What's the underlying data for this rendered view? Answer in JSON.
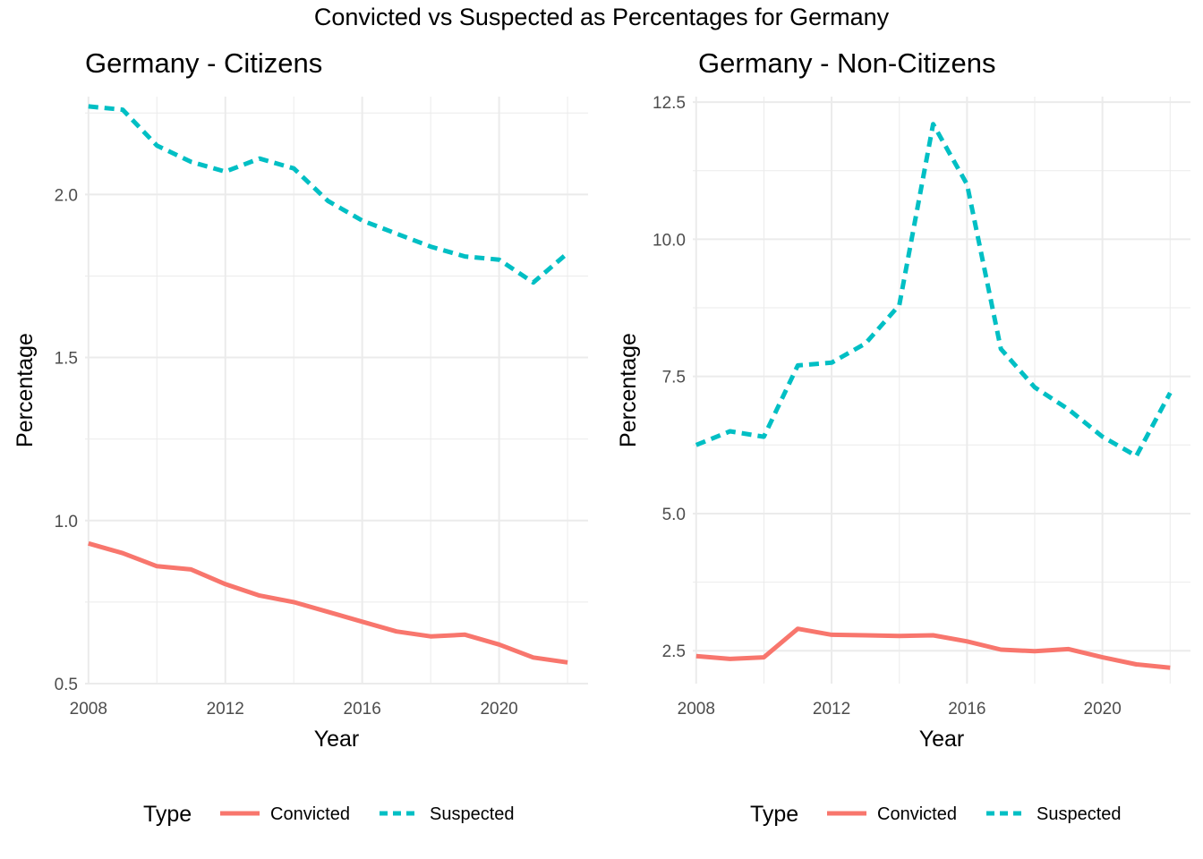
{
  "title": "Convicted vs Suspected as Percentages for Germany",
  "colors": {
    "Convicted": "#F8766D",
    "Suspected": "#00BFC4"
  },
  "chart_data": [
    {
      "type": "line",
      "title": "Germany - Citizens",
      "xlabel": "Year",
      "ylabel": "Percentage",
      "xlim": [
        2007.9,
        2022.6
      ],
      "ylim": [
        0.5,
        2.3
      ],
      "xticks": [
        2008,
        2012,
        2016,
        2020
      ],
      "xtick_labels": [
        "2008",
        "2012",
        "2016",
        "2020"
      ],
      "yticks": [
        0.5,
        1.0,
        1.5,
        2.0
      ],
      "ytick_labels": [
        "0.5",
        "1.0",
        "1.5",
        "2.0"
      ],
      "legend": {
        "title": "Type",
        "position": "bottom"
      },
      "x": [
        2008,
        2009,
        2010,
        2011,
        2012,
        2013,
        2014,
        2015,
        2016,
        2017,
        2018,
        2019,
        2020,
        2021,
        2022
      ],
      "series": [
        {
          "name": "Convicted",
          "style": "solid",
          "values": [
            0.93,
            0.9,
            0.86,
            0.85,
            0.805,
            0.77,
            0.75,
            0.72,
            0.69,
            0.66,
            0.645,
            0.65,
            0.62,
            0.58,
            0.565
          ]
        },
        {
          "name": "Suspected",
          "style": "dashed",
          "values": [
            2.27,
            2.26,
            2.15,
            2.1,
            2.07,
            2.11,
            2.08,
            1.98,
            1.92,
            1.88,
            1.84,
            1.81,
            1.8,
            1.73,
            1.82
          ]
        }
      ]
    },
    {
      "type": "line",
      "title": "Germany - Non-Citizens",
      "xlabel": "Year",
      "ylabel": "Percentage",
      "xlim": [
        2007.9,
        2022.6
      ],
      "ylim": [
        1.9,
        12.6
      ],
      "xticks": [
        2008,
        2012,
        2016,
        2020
      ],
      "xtick_labels": [
        "2008",
        "2012",
        "2016",
        "2020"
      ],
      "yticks": [
        2.5,
        5.0,
        7.5,
        10.0,
        12.5
      ],
      "ytick_labels": [
        "2.5",
        "5.0",
        "7.5",
        "10.0",
        "12.5"
      ],
      "legend": {
        "title": "Type",
        "position": "bottom"
      },
      "x": [
        2008,
        2009,
        2010,
        2011,
        2012,
        2013,
        2014,
        2015,
        2016,
        2017,
        2018,
        2019,
        2020,
        2021,
        2022
      ],
      "series": [
        {
          "name": "Convicted",
          "style": "solid",
          "values": [
            2.4,
            2.35,
            2.38,
            2.9,
            2.79,
            2.78,
            2.77,
            2.78,
            2.67,
            2.52,
            2.49,
            2.53,
            2.38,
            2.25,
            2.19
          ]
        },
        {
          "name": "Suspected",
          "style": "dashed",
          "values": [
            6.25,
            6.5,
            6.4,
            7.7,
            7.75,
            8.1,
            8.8,
            12.1,
            11.0,
            8.0,
            7.3,
            6.9,
            6.4,
            6.05,
            7.2
          ]
        }
      ]
    }
  ]
}
